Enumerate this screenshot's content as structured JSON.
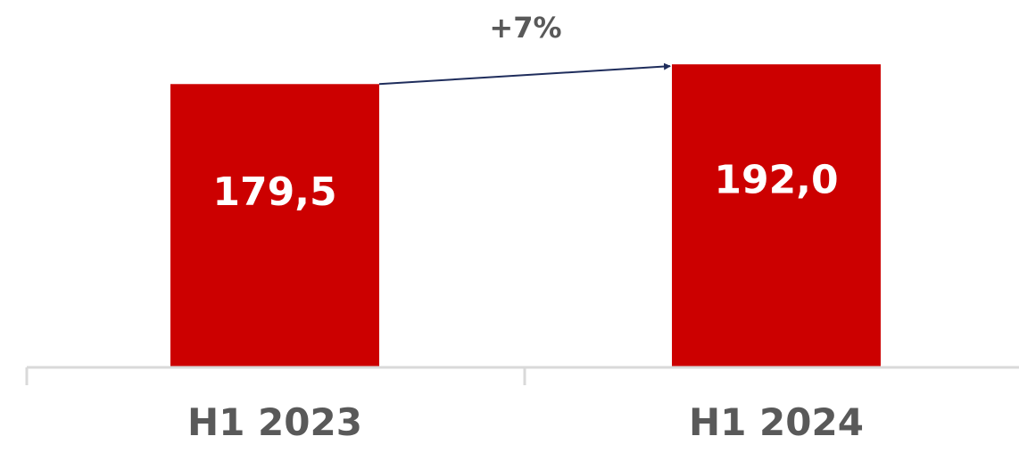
{
  "chart_data": {
    "type": "bar",
    "categories": [
      "H1 2023",
      "H1 2024"
    ],
    "values": [
      179.5,
      192.0
    ],
    "data_labels": [
      "179,5",
      "192,0"
    ],
    "growth_annotation": "+7%",
    "title": "",
    "xlabel": "",
    "ylabel": "",
    "ylim": [
      0,
      200
    ],
    "grid": false,
    "legend": "none"
  },
  "colors": {
    "bar": "#cc0000",
    "bar_label": "#ffffff",
    "category_label": "#595959",
    "growth_label": "#595959",
    "arrow": "#1f2d5c",
    "axis": "#d9d9d9"
  }
}
